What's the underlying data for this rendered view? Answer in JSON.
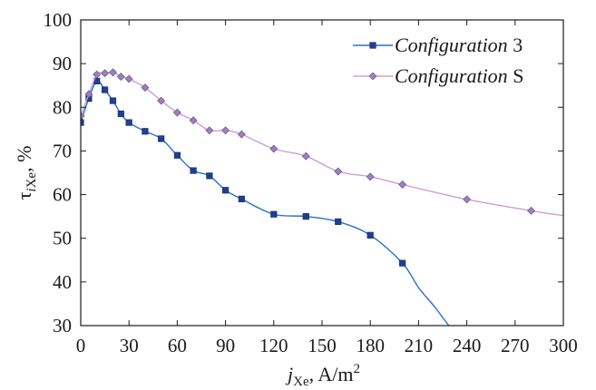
{
  "chart_data": {
    "type": "line",
    "title": "",
    "xlim": [
      0,
      300
    ],
    "ylim": [
      30,
      100
    ],
    "x_ticks": [
      0,
      30,
      60,
      90,
      120,
      150,
      180,
      210,
      240,
      270,
      300
    ],
    "y_ticks": [
      30,
      40,
      50,
      60,
      70,
      80,
      90,
      100
    ],
    "grid": false,
    "legend_position": "top-right",
    "xlabel": {
      "main": "j",
      "sub": "Xe",
      "after": ", A/m",
      "sup": "2"
    },
    "ylabel": {
      "main": "τ",
      "sub_i": "i",
      "sub": "Xe",
      "after": ", %"
    },
    "series": [
      {
        "name": "Configuration 3",
        "name_italic": "Configuration",
        "name_suffix": " 3",
        "color": "#2a6fc9",
        "marker": "square",
        "marker_color": "#1f3f8f",
        "x": [
          0,
          5,
          10,
          15,
          20,
          25,
          30,
          40,
          50,
          60,
          70,
          80,
          90,
          100,
          120,
          140,
          160,
          180,
          200
        ],
        "y": [
          76.5,
          82,
          86,
          84,
          81.5,
          78.5,
          76.5,
          74.5,
          72.8,
          69,
          65.5,
          64.3,
          61,
          59,
          55.5,
          55,
          53.8,
          50.7,
          44.3
        ],
        "curve_tail_x": [
          210,
          220,
          230,
          240
        ],
        "curve_tail_y": [
          38.7,
          34.3,
          29.5,
          26
        ]
      },
      {
        "name": "Configuration S",
        "name_italic": "Configuration",
        "name_suffix": " S",
        "color": "#c8a0d8",
        "marker": "diamond",
        "marker_color": "#9c80bc",
        "x": [
          0,
          5,
          10,
          15,
          20,
          25,
          30,
          40,
          50,
          60,
          70,
          80,
          90,
          100,
          120,
          140,
          160,
          180,
          200,
          240,
          280
        ],
        "y": [
          78,
          83,
          87.5,
          87.8,
          88,
          87,
          86.5,
          84.5,
          81.5,
          78.8,
          77,
          74.7,
          74.7,
          73.8,
          70.5,
          68.8,
          65.3,
          64.1,
          62.3,
          58.9,
          56.3
        ],
        "curve_tail_x": [
          300
        ],
        "curve_tail_y": [
          55.2
        ]
      }
    ]
  }
}
